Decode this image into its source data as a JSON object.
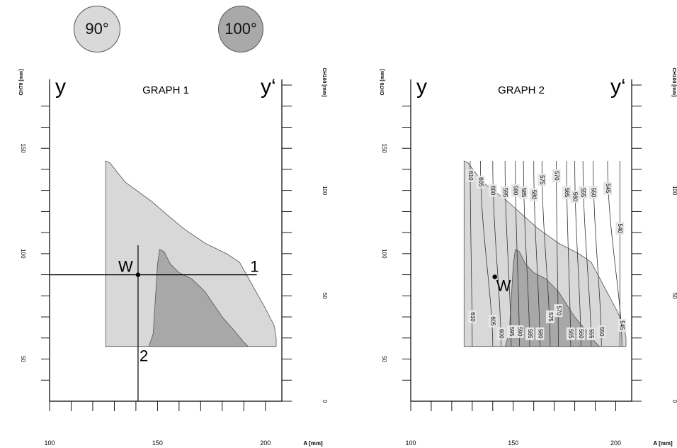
{
  "badges": {
    "left": "90°",
    "right": "100°"
  },
  "colors": {
    "light_region": "#d8d8d8",
    "dark_region": "#a8a8a8",
    "axis": "#000000",
    "label_box": "#e6e6e6"
  },
  "chart_data": [
    {
      "type": "area",
      "title": "GRAPH 1",
      "left_axis_letter": "y",
      "right_axis_letter": "y‘",
      "xlabel": "A [mm]",
      "y_left_label": "CH70 [mm]",
      "y_right_label": "CH100 [mm]",
      "xlim": [
        100,
        205
      ],
      "ylim_left": [
        30,
        180
      ],
      "ylim_right": [
        0,
        150
      ],
      "x_tick_labels": [
        "100",
        "150",
        "200"
      ],
      "y_left_tick_labels": [
        "50",
        "100",
        "150"
      ],
      "y_right_tick_labels": [
        "0",
        "50",
        "100"
      ],
      "series": [
        {
          "name": "90°",
          "outline": [
            [
              126,
              56
            ],
            [
              126,
              144
            ],
            [
              128,
              143
            ],
            [
              135,
              134
            ],
            [
              147,
              125
            ],
            [
              155,
              118
            ],
            [
              162,
              112
            ],
            [
              172,
              105
            ],
            [
              182,
              100
            ],
            [
              188,
              96
            ],
            [
              194,
              85
            ],
            [
              200,
              74
            ],
            [
              204,
              66
            ],
            [
              205,
              60
            ],
            [
              205,
              56
            ]
          ]
        },
        {
          "name": "100°",
          "outline": [
            [
              146,
              56
            ],
            [
              148,
              62
            ],
            [
              149,
              78
            ],
            [
              150,
              95
            ],
            [
              151,
              102
            ],
            [
              153,
              101
            ],
            [
              156,
              95
            ],
            [
              160,
              91
            ],
            [
              166,
              88
            ],
            [
              172,
              82
            ],
            [
              180,
              70
            ],
            [
              186,
              63
            ],
            [
              190,
              58
            ],
            [
              192,
              56
            ]
          ]
        }
      ],
      "point": {
        "label": "W",
        "x": 141,
        "y": 90
      },
      "guide_lines": [
        {
          "label": "1",
          "y": 90
        },
        {
          "label": "2",
          "x": 141
        }
      ]
    },
    {
      "type": "area",
      "title": "GRAPH 2",
      "left_axis_letter": "y",
      "right_axis_letter": "y‘",
      "xlabel": "A [mm]",
      "y_left_label": "CH70 [mm]",
      "y_right_label": "CH100 [mm]",
      "xlim": [
        100,
        205
      ],
      "ylim_left": [
        30,
        180
      ],
      "ylim_right": [
        0,
        150
      ],
      "x_tick_labels": [
        "100",
        "150",
        "200"
      ],
      "y_left_tick_labels": [
        "50",
        "100",
        "150"
      ],
      "y_right_tick_labels": [
        "0",
        "50",
        "100"
      ],
      "series": [
        {
          "name": "90°",
          "outline": [
            [
              126,
              56
            ],
            [
              126,
              144
            ],
            [
              128,
              143
            ],
            [
              135,
              134
            ],
            [
              147,
              125
            ],
            [
              155,
              118
            ],
            [
              162,
              112
            ],
            [
              172,
              105
            ],
            [
              182,
              100
            ],
            [
              188,
              96
            ],
            [
              194,
              85
            ],
            [
              200,
              74
            ],
            [
              204,
              66
            ],
            [
              205,
              60
            ],
            [
              205,
              56
            ]
          ]
        },
        {
          "name": "100°",
          "outline": [
            [
              146,
              56
            ],
            [
              148,
              62
            ],
            [
              149,
              78
            ],
            [
              150,
              95
            ],
            [
              151,
              102
            ],
            [
              153,
              101
            ],
            [
              156,
              95
            ],
            [
              160,
              91
            ],
            [
              166,
              88
            ],
            [
              172,
              82
            ],
            [
              180,
              70
            ],
            [
              186,
              63
            ],
            [
              190,
              58
            ],
            [
              192,
              56
            ]
          ]
        }
      ],
      "point": {
        "label": "W",
        "x": 141,
        "y": 89
      },
      "contour_labels_top": [
        {
          "text": "610",
          "x": 129,
          "y": 137
        },
        {
          "text": "605",
          "x": 134,
          "y": 134
        },
        {
          "text": "600",
          "x": 140,
          "y": 130
        },
        {
          "text": "595",
          "x": 146,
          "y": 129
        },
        {
          "text": "590",
          "x": 151,
          "y": 130
        },
        {
          "text": "585",
          "x": 155,
          "y": 129
        },
        {
          "text": "580",
          "x": 160,
          "y": 128
        },
        {
          "text": "575",
          "x": 164,
          "y": 135
        },
        {
          "text": "570",
          "x": 171,
          "y": 137
        },
        {
          "text": "565",
          "x": 176,
          "y": 129
        },
        {
          "text": "560",
          "x": 180,
          "y": 127
        },
        {
          "text": "555",
          "x": 184,
          "y": 129
        },
        {
          "text": "550",
          "x": 189,
          "y": 129
        },
        {
          "text": "545",
          "x": 196,
          "y": 131
        },
        {
          "text": "540",
          "x": 202,
          "y": 112
        }
      ],
      "contour_labels_bottom": [
        {
          "text": "610",
          "x": 130,
          "y": 70
        },
        {
          "text": "605",
          "x": 140,
          "y": 68
        },
        {
          "text": "600",
          "x": 144,
          "y": 62
        },
        {
          "text": "595",
          "x": 149,
          "y": 63
        },
        {
          "text": "590",
          "x": 153,
          "y": 63
        },
        {
          "text": "585",
          "x": 158,
          "y": 62
        },
        {
          "text": "580",
          "x": 163,
          "y": 62
        },
        {
          "text": "575",
          "x": 168,
          "y": 70
        },
        {
          "text": "570",
          "x": 172,
          "y": 73
        },
        {
          "text": "565",
          "x": 178,
          "y": 62
        },
        {
          "text": "560",
          "x": 183,
          "y": 62
        },
        {
          "text": "555",
          "x": 188,
          "y": 62
        },
        {
          "text": "550",
          "x": 193,
          "y": 63
        },
        {
          "text": "545",
          "x": 203,
          "y": 66
        }
      ]
    }
  ]
}
